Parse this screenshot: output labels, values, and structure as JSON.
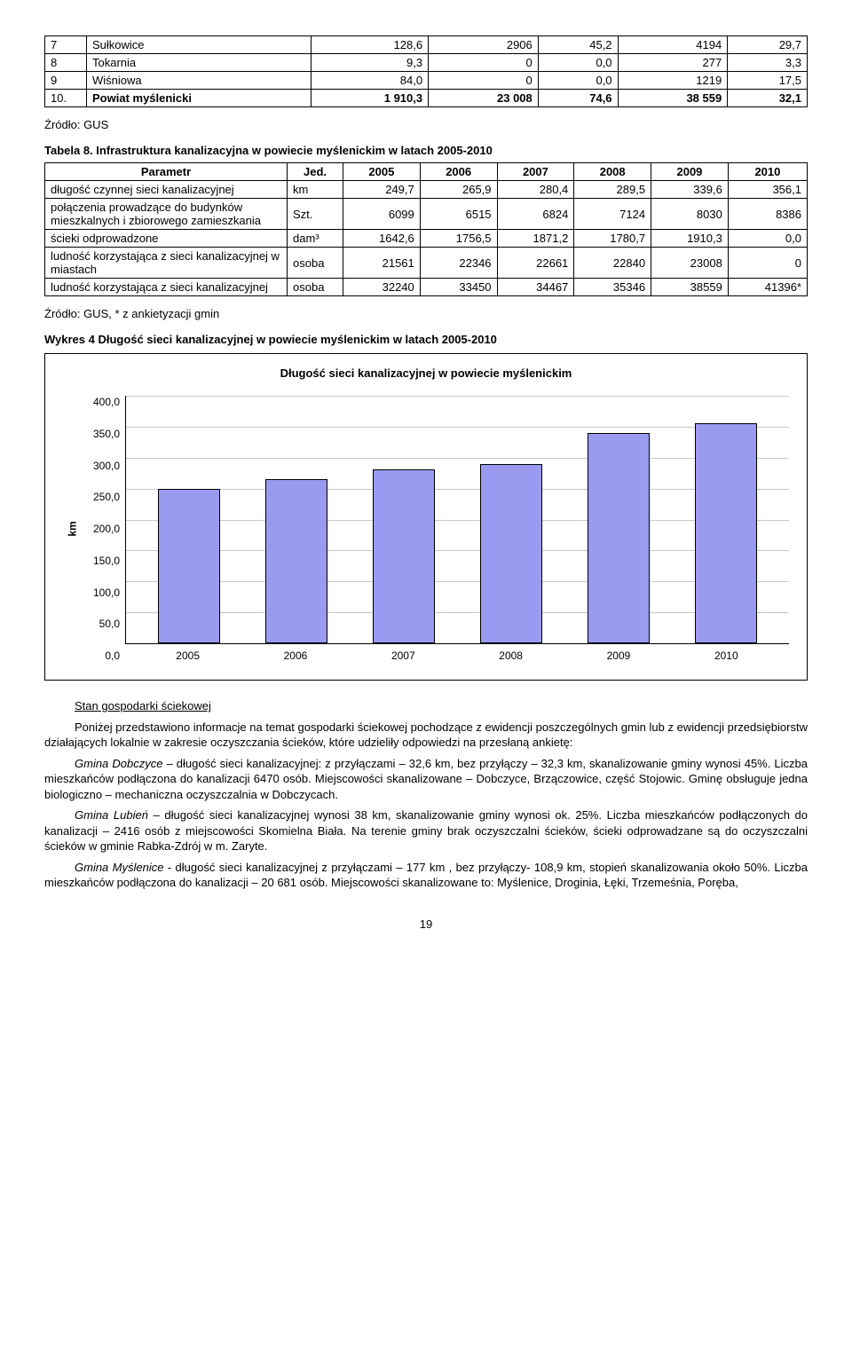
{
  "table1": {
    "rows": [
      {
        "n": "7",
        "name": "Sułkowice",
        "c1": "128,6",
        "c2": "2906",
        "c3": "45,2",
        "c4": "4194",
        "c5": "29,7"
      },
      {
        "n": "8",
        "name": "Tokarnia",
        "c1": "9,3",
        "c2": "0",
        "c3": "0,0",
        "c4": "277",
        "c5": "3,3"
      },
      {
        "n": "9",
        "name": "Wiśniowa",
        "c1": "84,0",
        "c2": "0",
        "c3": "0,0",
        "c4": "1219",
        "c5": "17,5"
      },
      {
        "n": "10.",
        "name": "Powiat myślenicki",
        "c1": "1 910,3",
        "c2": "23 008",
        "c3": "74,6",
        "c4": "38 559",
        "c5": "32,1"
      }
    ],
    "source": "Źródło: GUS"
  },
  "table2": {
    "caption": "Tabela 8. Infrastruktura kanalizacyjna w powiecie myślenickim w latach 2005-2010",
    "headers": [
      "Parametr",
      "Jed.",
      "2005",
      "2006",
      "2007",
      "2008",
      "2009",
      "2010"
    ],
    "rows": [
      {
        "p": "długość czynnej sieci kanalizacyjnej",
        "u": "km",
        "v": [
          "249,7",
          "265,9",
          "280,4",
          "289,5",
          "339,6",
          "356,1"
        ]
      },
      {
        "p": "połączenia prowadzące do budynków mieszkalnych i zbiorowego zamieszkania",
        "u": "Szt.",
        "v": [
          "6099",
          "6515",
          "6824",
          "7124",
          "8030",
          "8386"
        ]
      },
      {
        "p": "ścieki odprowadzone",
        "u": "dam³",
        "v": [
          "1642,6",
          "1756,5",
          "1871,2",
          "1780,7",
          "1910,3",
          "0,0"
        ]
      },
      {
        "p": "ludność korzystająca z sieci kanalizacyjnej w miastach",
        "u": "osoba",
        "v": [
          "21561",
          "22346",
          "22661",
          "22840",
          "23008",
          "0"
        ]
      },
      {
        "p": "ludność korzystająca z sieci kanalizacyjnej",
        "u": "osoba",
        "v": [
          "32240",
          "33450",
          "34467",
          "35346",
          "38559",
          "41396*"
        ]
      }
    ],
    "source": "Źródło: GUS, * z ankietyzacji gmin"
  },
  "chart": {
    "heading": "Wykres 4 Długość sieci kanalizacyjnej w powiecie myślenickim w latach 2005-2010",
    "title": "Długość sieci kanalizacyjnej w powiecie myślenickim",
    "ylabel": "km",
    "ymax": 400,
    "yticks": [
      "400,0",
      "350,0",
      "300,0",
      "250,0",
      "200,0",
      "150,0",
      "100,0",
      "50,0",
      "0,0"
    ],
    "categories": [
      "2005",
      "2006",
      "2007",
      "2008",
      "2009",
      "2010"
    ],
    "values": [
      249.7,
      265.9,
      280.4,
      289.5,
      339.6,
      356.1
    ],
    "bar_color": "#9a9af0",
    "border_color": "#000000",
    "grid_color": "#c8c8c8",
    "background": "#ffffff"
  },
  "body": {
    "sub_heading": "Stan gospodarki ściekowej",
    "p1": "Poniżej przedstawiono informacje na temat gospodarki ściekowej pochodzące z ewidencji poszczególnych gmin lub z ewidencji przedsiębiorstw działających lokalnie w zakresie oczyszczania ścieków, które udzieliły odpowiedzi na przesłaną ankietę:",
    "p2_lead": "Gmina Dobczyce",
    "p2": " – długość sieci kanalizacyjnej: z przyłączami – 32,6 km, bez przyłączy – 32,3 km, skanalizowanie gminy wynosi 45%. Liczba mieszkańców podłączona do kanalizacji 6470 osób. Miejscowości skanalizowane – Dobczyce, Brzączowice, część Stojowic. Gminę obsługuje jedna biologiczno – mechaniczna oczyszczalnia w Dobczycach.",
    "p3_lead": "Gmina Lubień",
    "p3": " – długość sieci kanalizacyjnej wynosi 38 km, skanalizowanie gminy wynosi ok. 25%. Liczba mieszkańców podłączonych do kanalizacji – 2416 osób z miejscowości Skomielna Biała. Na terenie gminy brak oczyszczalni ścieków, ścieki odprowadzane są do oczyszczalni ścieków w gminie Rabka-Zdrój w m. Zaryte.",
    "p4_lead": "Gmina Myślenice",
    "p4": " - długość sieci kanalizacyjnej z przyłączami – 177 km , bez przyłączy- 108,9 km, stopień skanalizowania około 50%. Liczba mieszkańców podłączona do kanalizacji – 20 681 osób. Miejscowości skanalizowane to: Myślenice, Droginia, Łęki, Trzemeśnia, Poręba,"
  },
  "page": "19"
}
